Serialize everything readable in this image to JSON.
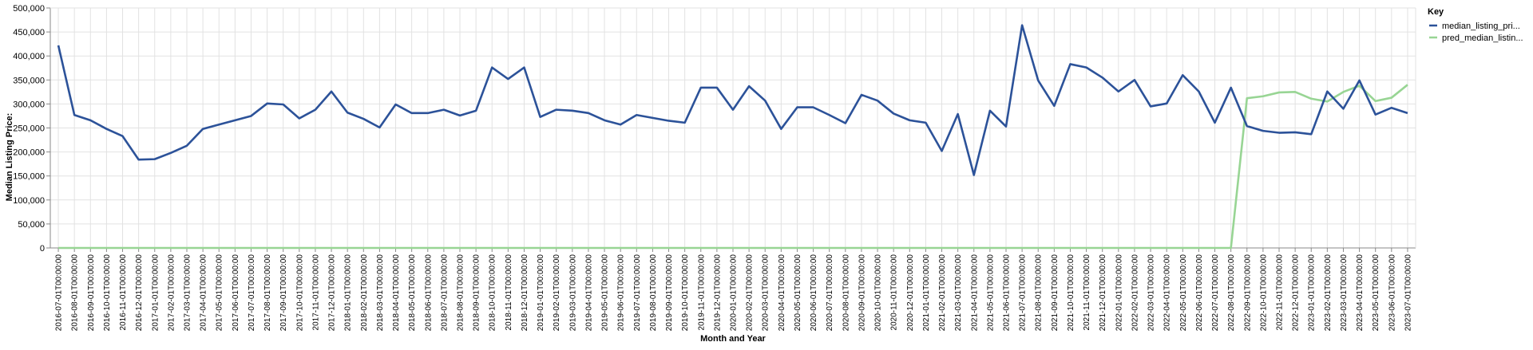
{
  "chart_data": {
    "type": "line",
    "xlabel": "Month and Year",
    "ylabel": "Median Listing Price:",
    "ylim": [
      0,
      500000
    ],
    "y_ticks": [
      "0",
      "50,000",
      "100,000",
      "150,000",
      "200,000",
      "250,000",
      "300,000",
      "350,000",
      "400,000",
      "450,000",
      "500,000"
    ],
    "grid": true,
    "legend": {
      "title": "Key",
      "placement": "top-right"
    },
    "x": [
      "2016-07-01T00:00:00",
      "2016-08-01T00:00:00",
      "2016-09-01T00:00:00",
      "2016-10-01T00:00:00",
      "2016-11-01T00:00:00",
      "2016-12-01T00:00:00",
      "2017-01-01T00:00:00",
      "2017-02-01T00:00:00",
      "2017-03-01T00:00:00",
      "2017-04-01T00:00:00",
      "2017-05-01T00:00:00",
      "2017-06-01T00:00:00",
      "2017-07-01T00:00:00",
      "2017-08-01T00:00:00",
      "2017-09-01T00:00:00",
      "2017-10-01T00:00:00",
      "2017-11-01T00:00:00",
      "2017-12-01T00:00:00",
      "2018-01-01T00:00:00",
      "2018-02-01T00:00:00",
      "2018-03-01T00:00:00",
      "2018-04-01T00:00:00",
      "2018-05-01T00:00:00",
      "2018-06-01T00:00:00",
      "2018-07-01T00:00:00",
      "2018-08-01T00:00:00",
      "2018-09-01T00:00:00",
      "2018-10-01T00:00:00",
      "2018-11-01T00:00:00",
      "2018-12-01T00:00:00",
      "2019-01-01T00:00:00",
      "2019-02-01T00:00:00",
      "2019-03-01T00:00:00",
      "2019-04-01T00:00:00",
      "2019-05-01T00:00:00",
      "2019-06-01T00:00:00",
      "2019-07-01T00:00:00",
      "2019-08-01T00:00:00",
      "2019-09-01T00:00:00",
      "2019-10-01T00:00:00",
      "2019-11-01T00:00:00",
      "2019-12-01T00:00:00",
      "2020-01-01T00:00:00",
      "2020-02-01T00:00:00",
      "2020-03-01T00:00:00",
      "2020-04-01T00:00:00",
      "2020-05-01T00:00:00",
      "2020-06-01T00:00:00",
      "2020-07-01T00:00:00",
      "2020-08-01T00:00:00",
      "2020-09-01T00:00:00",
      "2020-10-01T00:00:00",
      "2020-11-01T00:00:00",
      "2020-12-01T00:00:00",
      "2021-01-01T00:00:00",
      "2021-02-01T00:00:00",
      "2021-03-01T00:00:00",
      "2021-04-01T00:00:00",
      "2021-05-01T00:00:00",
      "2021-06-01T00:00:00",
      "2021-07-01T00:00:00",
      "2021-08-01T00:00:00",
      "2021-09-01T00:00:00",
      "2021-10-01T00:00:00",
      "2021-11-01T00:00:00",
      "2021-12-01T00:00:00",
      "2022-01-01T00:00:00",
      "2022-02-01T00:00:00",
      "2022-03-01T00:00:00",
      "2022-04-01T00:00:00",
      "2022-05-01T00:00:00",
      "2022-06-01T00:00:00",
      "2022-07-01T00:00:00",
      "2022-08-01T00:00:00",
      "2022-09-01T00:00:00",
      "2022-10-01T00:00:00",
      "2022-11-01T00:00:00",
      "2022-12-01T00:00:00",
      "2023-01-01T00:00:00",
      "2023-02-01T00:00:00",
      "2023-03-01T00:00:00",
      "2023-04-01T00:00:00",
      "2023-05-01T00:00:00",
      "2023-06-01T00:00:00",
      "2023-07-01T00:00:00"
    ],
    "series": [
      {
        "name": "median_listing_pri...",
        "color": "#2c5299",
        "values": [
          422000,
          277000,
          266000,
          248000,
          233000,
          184000,
          185000,
          198000,
          213000,
          248000,
          257000,
          266000,
          275000,
          301000,
          299000,
          270000,
          288000,
          326000,
          282000,
          269000,
          251000,
          299000,
          281000,
          281000,
          288000,
          276000,
          286000,
          376000,
          352000,
          376000,
          273000,
          288000,
          286000,
          281000,
          266000,
          257000,
          277000,
          271000,
          265000,
          261000,
          334000,
          334000,
          288000,
          337000,
          307000,
          248000,
          293000,
          293000,
          277000,
          260000,
          319000,
          307000,
          280000,
          266000,
          261000,
          202000,
          279000,
          152000,
          286000,
          253000,
          464000,
          349000,
          296000,
          383000,
          376000,
          355000,
          326000,
          350000,
          295000,
          301000,
          360000,
          326000,
          261000,
          334000,
          254000,
          244000,
          240000,
          241000,
          237000,
          326000,
          290000,
          349000,
          278000,
          292000,
          281000
        ]
      },
      {
        "name": "pred_median_listin...",
        "color": "#98d594",
        "values": [
          0,
          0,
          0,
          0,
          0,
          0,
          0,
          0,
          0,
          0,
          0,
          0,
          0,
          0,
          0,
          0,
          0,
          0,
          0,
          0,
          0,
          0,
          0,
          0,
          0,
          0,
          0,
          0,
          0,
          0,
          0,
          0,
          0,
          0,
          0,
          0,
          0,
          0,
          0,
          0,
          0,
          0,
          0,
          0,
          0,
          0,
          0,
          0,
          0,
          0,
          0,
          0,
          0,
          0,
          0,
          0,
          0,
          0,
          0,
          0,
          0,
          0,
          0,
          0,
          0,
          0,
          0,
          0,
          0,
          0,
          0,
          0,
          0,
          0,
          312000,
          316000,
          324000,
          325000,
          311000,
          305000,
          325000,
          338000,
          306000,
          313000,
          340000
        ]
      }
    ]
  }
}
